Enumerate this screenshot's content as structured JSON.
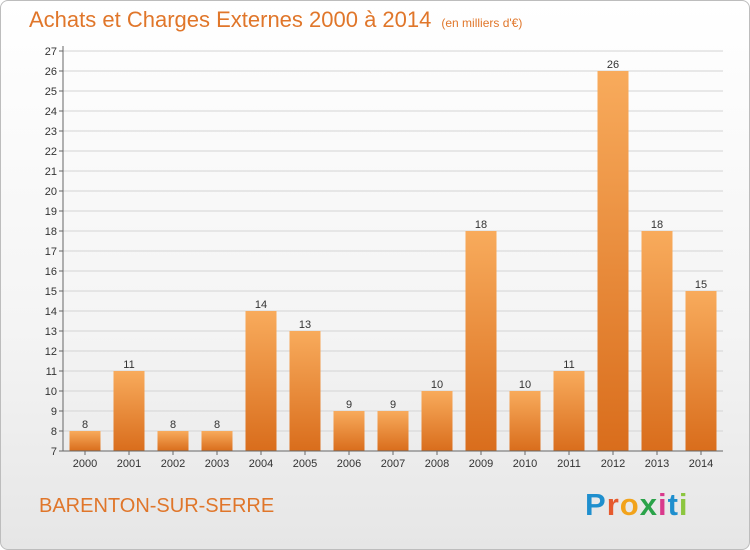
{
  "header": {
    "title": "Achats et Charges Externes 2000 à 2014",
    "unit": "(en milliers d'€)"
  },
  "footer": {
    "commune": "BARENTON-SUR-SERRE",
    "logo_letters": [
      "P",
      "r",
      "o",
      "x",
      "i",
      "t",
      "i"
    ],
    "logo_colors": [
      "#1f8fce",
      "#e65a2e",
      "#f2a31b",
      "#2ba34a",
      "#d93a8c",
      "#1f8fce",
      "#8cc63f"
    ]
  },
  "colors": {
    "accent": "#e0762a",
    "bar_top": "#f8ab5c",
    "bar_bottom": "#d96d1c",
    "grid": "#d4d4d4",
    "axis": "#666666"
  },
  "chart_data": {
    "type": "bar",
    "categories": [
      "2000",
      "2001",
      "2002",
      "2003",
      "2004",
      "2005",
      "2006",
      "2007",
      "2008",
      "2009",
      "2010",
      "2011",
      "2012",
      "2013",
      "2014"
    ],
    "values": [
      8,
      11,
      8,
      8,
      14,
      13,
      9,
      9,
      10,
      18,
      10,
      11,
      26,
      18,
      15
    ],
    "ylim": [
      7,
      27
    ],
    "yticks": [
      "7",
      "8",
      "9",
      "10",
      "11",
      "12",
      "13",
      "14",
      "15",
      "16",
      "17",
      "18",
      "19",
      "20",
      "21",
      "22",
      "23",
      "24",
      "25",
      "26",
      "27"
    ],
    "grid": true,
    "legend": "none"
  }
}
